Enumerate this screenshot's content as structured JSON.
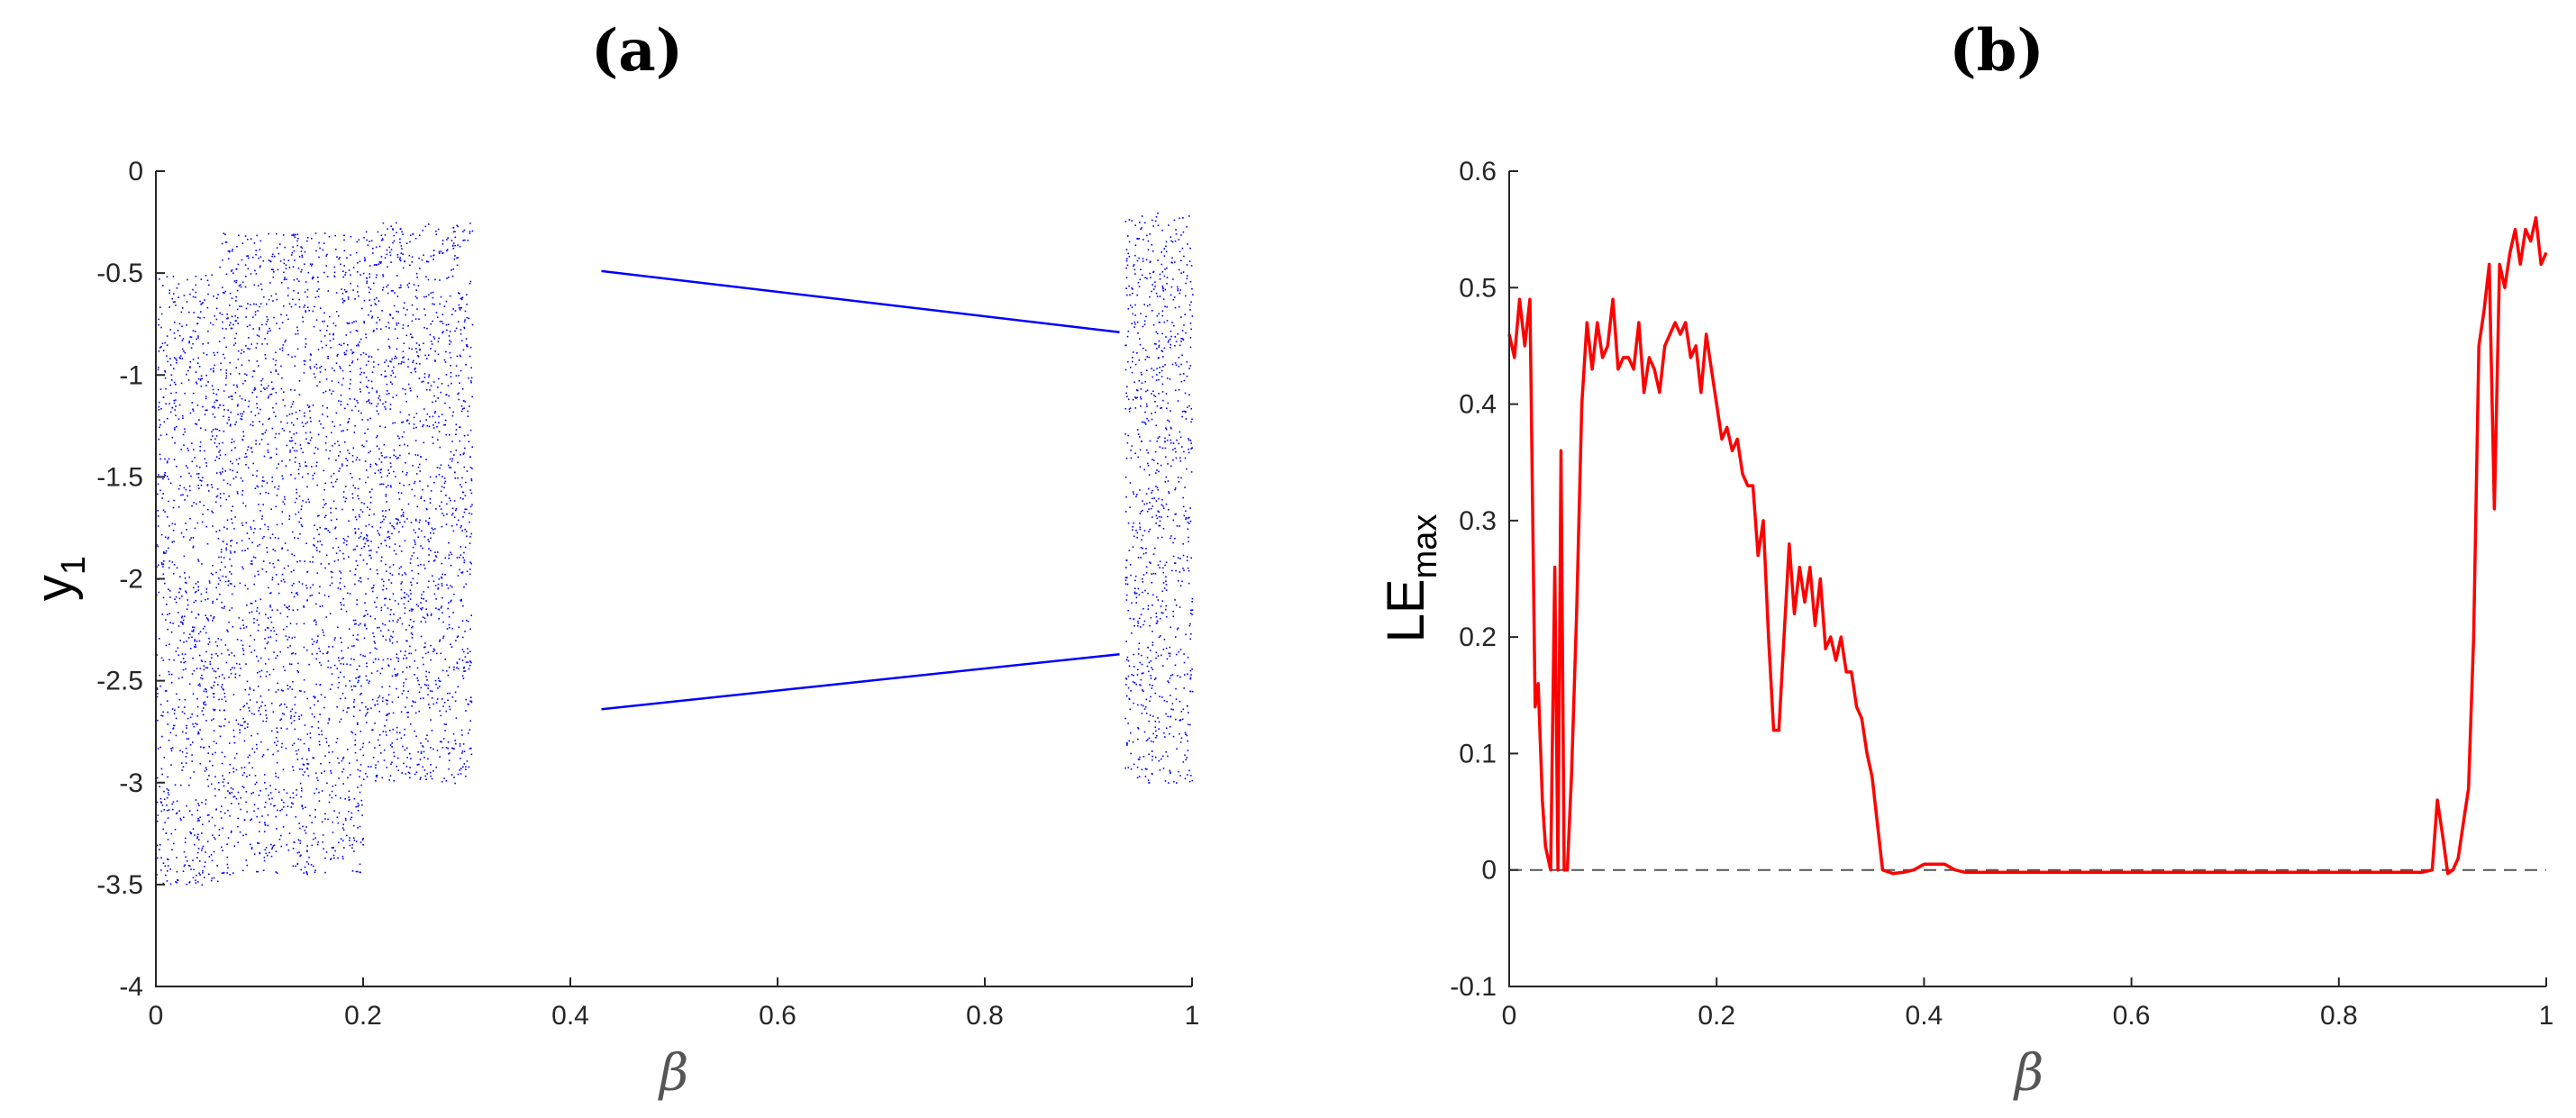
{
  "chart_data": [
    {
      "type": "scatter",
      "panel_label": "(a)",
      "xlabel": "β",
      "ylabel": "y",
      "ylabel_subscript": "1",
      "xlim": [
        0,
        1
      ],
      "ylim": [
        -4,
        0
      ],
      "xticks": [
        0,
        0.2,
        0.4,
        0.6,
        0.8,
        1
      ],
      "xtick_labels": [
        "0",
        "0.2",
        "0.4",
        "0.6",
        "0.8",
        "1"
      ],
      "yticks": [
        -4,
        -3.5,
        -3,
        -2.5,
        -2,
        -1.5,
        -1,
        -0.5,
        0
      ],
      "ytick_labels": [
        "-4",
        "-3.5",
        "-3",
        "-2.5",
        "-2",
        "-1.5",
        "-1",
        "-0.5",
        "0"
      ],
      "grid": false,
      "color": "#0000FF",
      "chaotic_bands": [
        {
          "x": [
            0.0,
            0.06
          ],
          "y": [
            -3.5,
            -0.5
          ]
        },
        {
          "x": [
            0.06,
            0.2
          ],
          "y": [
            -3.45,
            -0.3
          ]
        },
        {
          "x": [
            0.2,
            0.305
          ],
          "y": [
            -3.0,
            -0.25
          ]
        },
        {
          "x": [
            0.935,
            1.0
          ],
          "y": [
            -3.0,
            -0.2
          ]
        }
      ],
      "periodic_branches": [
        {
          "name": "upper",
          "x": [
            0.43,
            0.93
          ],
          "y": [
            -0.49,
            -0.79
          ]
        },
        {
          "name": "lower",
          "x": [
            0.43,
            0.93
          ],
          "y": [
            -2.64,
            -2.37
          ]
        }
      ]
    },
    {
      "type": "line",
      "panel_label": "(b)",
      "xlabel": "β",
      "ylabel": "LE",
      "ylabel_subscript": "max",
      "xlim": [
        0,
        1
      ],
      "ylim": [
        -0.1,
        0.6
      ],
      "xticks": [
        0,
        0.2,
        0.4,
        0.6,
        0.8,
        1
      ],
      "xtick_labels": [
        "0",
        "0.2",
        "0.4",
        "0.6",
        "0.8",
        "1"
      ],
      "yticks": [
        -0.1,
        0,
        0.1,
        0.2,
        0.3,
        0.4,
        0.5,
        0.6
      ],
      "ytick_labels": [
        "-0.1",
        "0",
        "0.1",
        "0.2",
        "0.3",
        "0.4",
        "0.5",
        "0.6"
      ],
      "grid": false,
      "reference_line": {
        "y": 0,
        "style": "dashed",
        "color": "#555555"
      },
      "series": [
        {
          "color": "#FF0000",
          "x": [
            0,
            0.005,
            0.01,
            0.015,
            0.02,
            0.025,
            0.028,
            0.032,
            0.035,
            0.04,
            0.044,
            0.047,
            0.05,
            0.053,
            0.056,
            0.06,
            0.065,
            0.07,
            0.075,
            0.08,
            0.085,
            0.09,
            0.095,
            0.1,
            0.105,
            0.11,
            0.115,
            0.12,
            0.125,
            0.13,
            0.135,
            0.14,
            0.145,
            0.15,
            0.155,
            0.16,
            0.165,
            0.17,
            0.175,
            0.18,
            0.185,
            0.19,
            0.195,
            0.2,
            0.205,
            0.21,
            0.215,
            0.22,
            0.225,
            0.23,
            0.235,
            0.24,
            0.245,
            0.25,
            0.255,
            0.26,
            0.265,
            0.27,
            0.275,
            0.28,
            0.285,
            0.29,
            0.295,
            0.3,
            0.305,
            0.31,
            0.315,
            0.32,
            0.325,
            0.33,
            0.335,
            0.34,
            0.345,
            0.35,
            0.355,
            0.36,
            0.37,
            0.38,
            0.39,
            0.4,
            0.42,
            0.43,
            0.44,
            0.5,
            0.6,
            0.7,
            0.8,
            0.88,
            0.89,
            0.895,
            0.9,
            0.905,
            0.91,
            0.915,
            0.92,
            0.925,
            0.93,
            0.935,
            0.94,
            0.945,
            0.95,
            0.955,
            0.96,
            0.965,
            0.97,
            0.975,
            0.98,
            0.985,
            0.99,
            0.995,
            1.0
          ],
          "y": [
            0.46,
            0.44,
            0.49,
            0.45,
            0.49,
            0.14,
            0.16,
            0.06,
            0.02,
            0.0,
            0.26,
            0.0,
            0.36,
            0.0,
            0.0,
            0.08,
            0.22,
            0.4,
            0.47,
            0.43,
            0.47,
            0.44,
            0.45,
            0.49,
            0.43,
            0.44,
            0.44,
            0.43,
            0.47,
            0.41,
            0.44,
            0.43,
            0.41,
            0.45,
            0.46,
            0.47,
            0.46,
            0.47,
            0.44,
            0.45,
            0.41,
            0.46,
            0.43,
            0.4,
            0.37,
            0.38,
            0.36,
            0.37,
            0.34,
            0.33,
            0.33,
            0.27,
            0.3,
            0.2,
            0.12,
            0.12,
            0.2,
            0.28,
            0.22,
            0.26,
            0.23,
            0.26,
            0.21,
            0.25,
            0.19,
            0.2,
            0.18,
            0.2,
            0.17,
            0.17,
            0.14,
            0.13,
            0.1,
            0.08,
            0.04,
            0.0,
            -0.003,
            -0.002,
            0.0,
            0.005,
            0.005,
            0.0,
            -0.002,
            -0.002,
            -0.002,
            -0.002,
            -0.002,
            -0.002,
            0.0,
            0.06,
            0.03,
            -0.003,
            0.0,
            0.01,
            0.04,
            0.07,
            0.2,
            0.45,
            0.48,
            0.52,
            0.31,
            0.52,
            0.5,
            0.53,
            0.55,
            0.52,
            0.55,
            0.54,
            0.56,
            0.52,
            0.53
          ]
        }
      ]
    }
  ]
}
